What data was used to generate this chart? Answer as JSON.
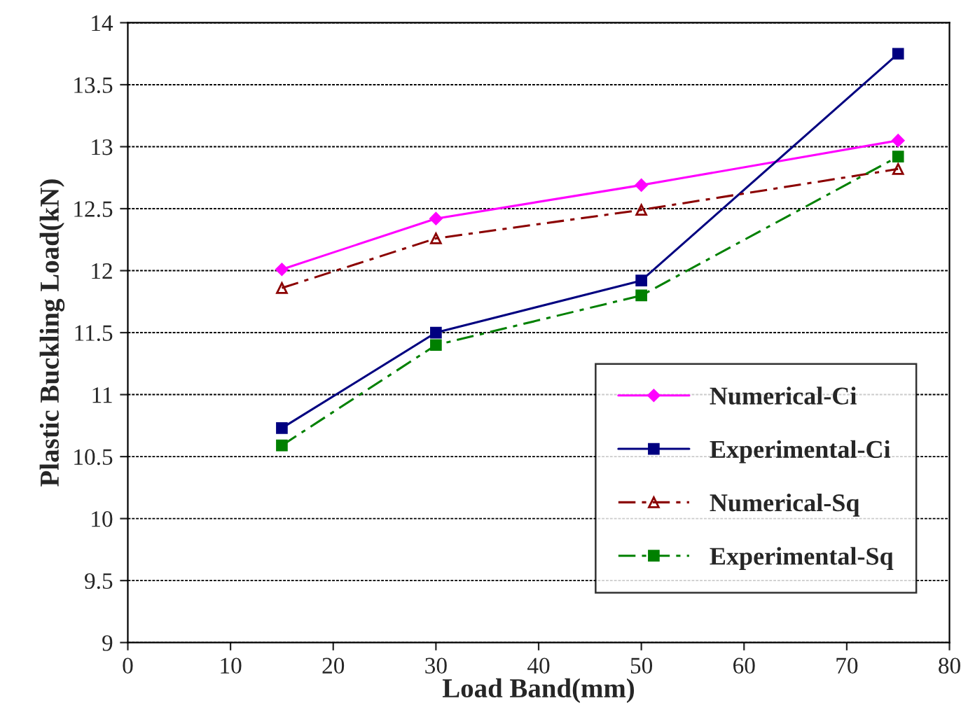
{
  "chart_data": {
    "type": "line",
    "xlabel": "Load Band(mm)",
    "ylabel": "Plastic Buckling Load(kN)",
    "x": [
      15,
      30,
      50,
      75
    ],
    "series": [
      {
        "name": "Numerical-Ci",
        "color": "#ff00ff",
        "values": [
          12.01,
          12.42,
          12.69,
          13.05
        ],
        "marker": "diamond",
        "line_style": "solid"
      },
      {
        "name": "Experimental-Ci",
        "color": "#000080",
        "values": [
          10.73,
          11.5,
          11.92,
          13.75
        ],
        "marker": "square",
        "line_style": "solid"
      },
      {
        "name": "Numerical-Sq",
        "color": "#8b0000",
        "values": [
          11.86,
          12.26,
          12.49,
          12.82
        ],
        "marker": "triangle",
        "line_style": "dashdot"
      },
      {
        "name": "Experimental-Sq",
        "color": "#008000",
        "values": [
          10.59,
          11.4,
          11.8,
          12.92
        ],
        "marker": "square",
        "line_style": "dashdot"
      }
    ],
    "xlim": [
      0,
      80
    ],
    "xticks": [
      0,
      10,
      20,
      30,
      40,
      50,
      60,
      70,
      80
    ],
    "ylim": [
      9,
      14
    ],
    "yticks": [
      9,
      9.5,
      10,
      10.5,
      11,
      11.5,
      12,
      12.5,
      13,
      13.5,
      14
    ],
    "grid": "y",
    "legend": "bottom right"
  }
}
